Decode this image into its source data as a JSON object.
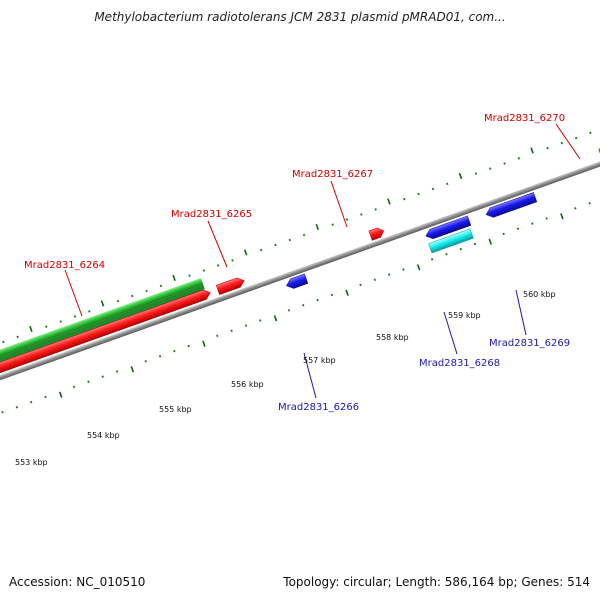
{
  "title": "Methylobacterium radiotolerans JCM 2831 plasmid pMRAD01, com...",
  "footer": {
    "accession": "Accession: NC_010510",
    "summary": "Topology: circular; Length: 586,164 bp; Genes: 514"
  },
  "colors": {
    "backbone": "#8a8a8a",
    "tick_dot": "#1e7a1e",
    "tick_major": "#0a6a0a",
    "forward_gene": "#ff2a2a",
    "reverse_gene": "#1a1aee",
    "green_feature": "#2ec43a",
    "cyan_feature": "#19f0f0",
    "forward_label": "#cc0000",
    "reverse_label": "#1a1aaa"
  },
  "scale_labels": [
    "553 kbp",
    "554 kbp",
    "555 kbp",
    "556 kbp",
    "557 kbp",
    "558 kbp",
    "559 kbp",
    "560 kbp"
  ],
  "genes": [
    {
      "name": "Mrad2831_6264",
      "strand": "forward"
    },
    {
      "name": "Mrad2831_6265",
      "strand": "forward"
    },
    {
      "name": "Mrad2831_6266",
      "strand": "reverse"
    },
    {
      "name": "Mrad2831_6267",
      "strand": "forward"
    },
    {
      "name": "Mrad2831_6268",
      "strand": "reverse"
    },
    {
      "name": "Mrad2831_6269",
      "strand": "reverse"
    },
    {
      "name": "Mrad2831_6270",
      "strand": "forward"
    }
  ]
}
